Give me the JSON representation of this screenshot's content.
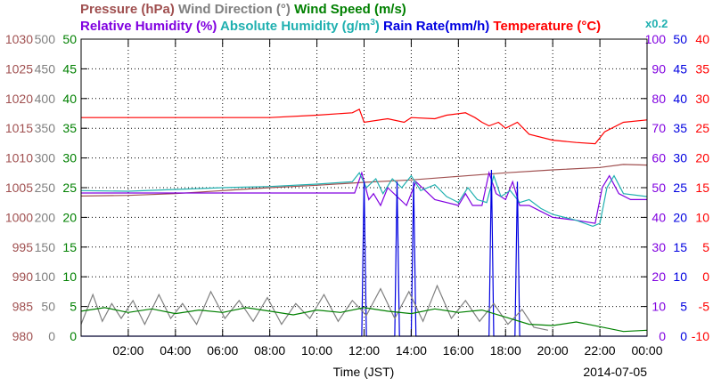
{
  "chart_data": {
    "type": "line",
    "header": {
      "row1": [
        {
          "text": "Pressure (hPa)",
          "color": "#a05050"
        },
        {
          "text": "Wind Direction (°)",
          "color": "#808080"
        },
        {
          "text": "Wind Speed (m/s)",
          "color": "#008000"
        }
      ],
      "row2": [
        {
          "text": "Relative Humidity (%)",
          "color": "#8000e0"
        },
        {
          "text": "Absolute Humidity (g/m",
          "sup": "3",
          "tail": ")",
          "color": "#20b0b0"
        },
        {
          "text": "Rain Rate(mm/h)",
          "color": "#0000e0"
        },
        {
          "text": "Temperature (°C)",
          "color": "#ff0000"
        }
      ],
      "scale_note": {
        "text": "x0.2",
        "color": "#20b0b0"
      }
    },
    "xlabel": "Time (JST)",
    "date": "2014-07-05",
    "x_ticks": [
      "02:00",
      "04:00",
      "06:00",
      "08:00",
      "10:00",
      "12:00",
      "14:00",
      "16:00",
      "18:00",
      "20:00",
      "22:00",
      "00:00"
    ],
    "xlim": [
      0,
      24
    ],
    "left_axes": [
      {
        "name": "pressure",
        "color": "#a05050",
        "min": 980,
        "max": 1030,
        "ticks": [
          "980",
          "985",
          "990",
          "995",
          "1000",
          "1005",
          "1010",
          "1015",
          "1020",
          "1025",
          "1030"
        ]
      },
      {
        "name": "wind_direction",
        "color": "#808080",
        "min": 0,
        "max": 500,
        "ticks": [
          "0",
          "50",
          "100",
          "150",
          "200",
          "250",
          "300",
          "350",
          "400",
          "450",
          "500"
        ]
      },
      {
        "name": "wind_speed",
        "color": "#008000",
        "min": 0,
        "max": 50,
        "ticks": [
          "0",
          "5",
          "10",
          "15",
          "20",
          "25",
          "30",
          "35",
          "40",
          "45",
          "50"
        ]
      }
    ],
    "right_axes": [
      {
        "name": "humidity",
        "color": "#8000e0",
        "min": 0,
        "max": 100,
        "ticks": [
          "0",
          "10",
          "20",
          "30",
          "40",
          "50",
          "60",
          "70",
          "80",
          "90",
          "100"
        ]
      },
      {
        "name": "rain_rate",
        "color": "#0000e0",
        "min": 0,
        "max": 50,
        "ticks": [
          "0",
          "5",
          "10",
          "15",
          "20",
          "25",
          "30",
          "35",
          "40",
          "45",
          "50"
        ]
      },
      {
        "name": "temperature",
        "color": "#ff0000",
        "min": -10,
        "max": 40,
        "ticks": [
          "-10",
          "-5",
          "0",
          "5",
          "10",
          "15",
          "20",
          "25",
          "30",
          "35",
          "40"
        ]
      }
    ],
    "series": [
      {
        "name": "Temperature",
        "axis": "temperature",
        "color": "#ff0000",
        "x": [
          0,
          8,
          10,
          11.5,
          11.8,
          12.0,
          13,
          13.7,
          14,
          15,
          15.5,
          16.3,
          16.7,
          17,
          17.3,
          17.7,
          18,
          18.5,
          19,
          20,
          21,
          21.8,
          22.2,
          23,
          24
        ],
        "y": [
          26.8,
          26.8,
          27.2,
          27.6,
          28.2,
          26.0,
          26.6,
          26.0,
          26.8,
          26.6,
          27.2,
          27.6,
          26.8,
          26.0,
          25.4,
          26.0,
          25.0,
          26.0,
          24.0,
          23.0,
          22.6,
          22.4,
          24.4,
          26.0,
          26.4
        ]
      },
      {
        "name": "Pressure",
        "axis": "pressure",
        "color": "#a05050",
        "x": [
          0,
          2,
          4,
          6,
          8,
          10,
          12,
          14,
          16,
          18,
          20,
          22,
          23,
          24
        ],
        "y": [
          1003.6,
          1003.7,
          1004.0,
          1004.5,
          1005.0,
          1005.4,
          1005.9,
          1006.3,
          1006.9,
          1007.5,
          1008.0,
          1008.4,
          1008.9,
          1008.8
        ]
      },
      {
        "name": "Relative Humidity",
        "axis": "humidity",
        "color": "#8000e0",
        "x": [
          0,
          4,
          5,
          6,
          8,
          10,
          11.6,
          11.9,
          12.2,
          12.4,
          12.7,
          13.0,
          13.4,
          13.8,
          14.2,
          15,
          16,
          16.3,
          16.6,
          17,
          17.3,
          17.6,
          18,
          18.3,
          18.6,
          19,
          19.5,
          20,
          21,
          21.8,
          22.1,
          22.4,
          22.8,
          23.3,
          24
        ],
        "y": [
          48.2,
          48.2,
          48.2,
          48.2,
          48.2,
          48.2,
          48.2,
          55.0,
          46.0,
          48.0,
          44.0,
          50.0,
          47.0,
          44.0,
          52.0,
          46.0,
          44.0,
          48.0,
          44.0,
          44.0,
          55.0,
          48.0,
          46.0,
          52.0,
          44.0,
          44.0,
          42.0,
          40.0,
          39.0,
          38.0,
          50.0,
          54.0,
          48.0,
          46.0,
          46.0
        ]
      },
      {
        "name": "Absolute Humidity",
        "axis": "humidity",
        "color": "#20b0b0",
        "x": [
          0,
          2,
          4,
          6,
          8,
          10,
          11.5,
          11.8,
          12.1,
          12.5,
          12.8,
          13.2,
          13.6,
          14,
          14.4,
          15,
          15.5,
          16,
          16.4,
          16.8,
          17.2,
          17.5,
          17.8,
          18.2,
          18.6,
          19,
          19.5,
          20,
          21,
          21.7,
          22.0,
          22.3,
          22.6,
          23,
          24
        ],
        "y": [
          49.0,
          48.8,
          49.4,
          50.0,
          50.4,
          51.2,
          52.0,
          55.0,
          50.0,
          53.0,
          48.0,
          53.0,
          50.0,
          54.0,
          49.0,
          51.0,
          47.0,
          45.0,
          50.0,
          46.0,
          45.0,
          54.0,
          47.0,
          49.0,
          45.0,
          46.0,
          43.0,
          41.0,
          39.0,
          37.0,
          38.0,
          50.0,
          54.0,
          48.0,
          47.0
        ]
      },
      {
        "name": "Rain Rate",
        "axis": "rain_rate",
        "color": "#0000e0",
        "x": [
          0,
          11.9,
          12.0,
          12.1,
          13.3,
          13.4,
          13.5,
          14.0,
          14.1,
          14.2,
          17.3,
          17.4,
          17.5,
          18.4,
          18.5,
          18.6,
          24
        ],
        "y": [
          0,
          0,
          26,
          0,
          0,
          26,
          0,
          0,
          26,
          0,
          0,
          28,
          0,
          0,
          26,
          0,
          0
        ]
      },
      {
        "name": "Wind Direction",
        "axis": "wind_direction",
        "color": "#808080",
        "x": [
          0,
          0.5,
          0.9,
          1.3,
          1.7,
          2.2,
          2.7,
          3.3,
          3.8,
          4.3,
          4.9,
          5.5,
          6.1,
          6.7,
          7.3,
          7.9,
          8.5,
          9.1,
          9.7,
          10.3,
          10.9,
          11.5,
          12.1,
          12.7,
          13.3,
          13.9,
          14.5,
          15.1,
          15.7,
          16.3,
          16.9,
          17.5,
          18.1,
          18.7,
          19.2,
          19.8
        ],
        "y": [
          20,
          70,
          25,
          55,
          30,
          60,
          20,
          70,
          30,
          55,
          20,
          75,
          30,
          60,
          25,
          65,
          20,
          55,
          30,
          70,
          25,
          60,
          35,
          80,
          30,
          75,
          25,
          85,
          30,
          60,
          25,
          55,
          20,
          45,
          15,
          10
        ]
      },
      {
        "name": "Wind Speed",
        "axis": "wind_speed",
        "color": "#008000",
        "x": [
          0,
          1,
          2,
          3,
          4,
          5,
          6,
          7,
          8,
          9,
          10,
          11,
          12,
          13,
          14,
          15,
          16,
          17,
          18,
          19,
          20,
          21,
          22,
          23,
          24
        ],
        "y": [
          4.2,
          4.8,
          4.0,
          4.6,
          3.8,
          4.4,
          4.0,
          4.8,
          4.2,
          3.6,
          4.4,
          4.0,
          4.8,
          4.2,
          3.8,
          4.6,
          4.0,
          4.4,
          3.2,
          2.0,
          1.8,
          2.4,
          1.6,
          0.8,
          1.0
        ]
      }
    ],
    "grid": true
  }
}
